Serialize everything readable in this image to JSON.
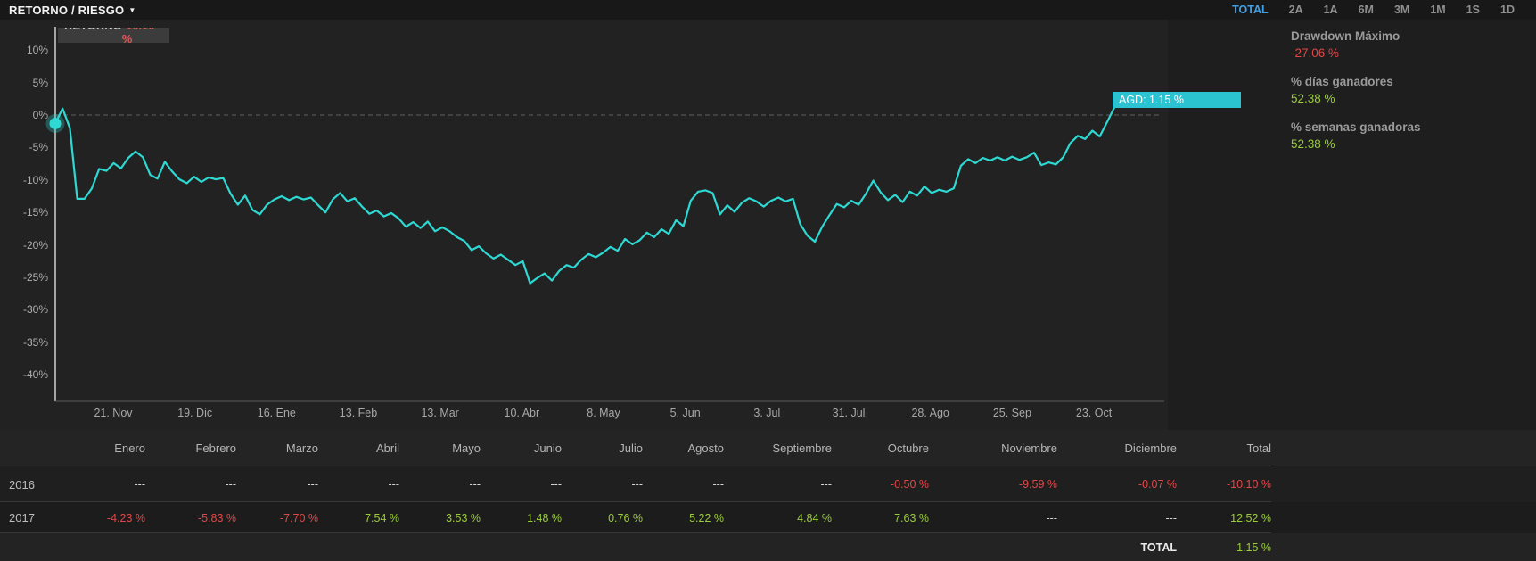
{
  "header": {
    "title": "RETORNO / RIESGO",
    "caret": "▼"
  },
  "periods": {
    "items": [
      {
        "label": "TOTAL",
        "active": true
      },
      {
        "label": "2A",
        "active": false
      },
      {
        "label": "1A",
        "active": false
      },
      {
        "label": "6M",
        "active": false
      },
      {
        "label": "3M",
        "active": false
      },
      {
        "label": "1M",
        "active": false
      },
      {
        "label": "1S",
        "active": false
      },
      {
        "label": "1D",
        "active": false
      }
    ]
  },
  "tooltip": {
    "label": "RETORNO",
    "value": "-10.10 %"
  },
  "stats": {
    "items": [
      {
        "label": "Drawdown Máximo",
        "value": "-27.06 %",
        "color": "#e04747"
      },
      {
        "label": "% días ganadores",
        "value": "52.38 %",
        "color": "#9acc3c"
      },
      {
        "label": "% semanas ganadoras",
        "value": "52.38 %",
        "color": "#9acc3c"
      }
    ]
  },
  "chart_data": {
    "type": "line",
    "unit": "%",
    "series_name": "Retorno",
    "end_label": "AGD: 1.15 %",
    "line_color": "#2ed9d3",
    "zero_line_dashed": true,
    "ylim": [
      -43,
      13
    ],
    "y_ticks": [
      "10%",
      "5%",
      "0%",
      "-5%",
      "-10%",
      "-15%",
      "-20%",
      "-25%",
      "-30%",
      "-35%",
      "-40%"
    ],
    "y_tick_values": [
      10,
      5,
      0,
      -5,
      -10,
      -15,
      -20,
      -25,
      -30,
      -35,
      -40
    ],
    "x_ticks": [
      "21. Nov",
      "19. Dic",
      "16. Ene",
      "13. Feb",
      "13. Mar",
      "10. Abr",
      "8. May",
      "5. Jun",
      "3. Jul",
      "31. Jul",
      "28. Ago",
      "25. Sep",
      "23. Oct"
    ],
    "values": [
      -1.3,
      1.0,
      -2.0,
      -12.9,
      -12.9,
      -11.3,
      -8.3,
      -8.6,
      -7.4,
      -8.2,
      -6.6,
      -5.6,
      -6.5,
      -9.2,
      -9.8,
      -7.2,
      -8.7,
      -9.9,
      -10.5,
      -9.5,
      -10.3,
      -9.6,
      -9.9,
      -9.7,
      -12.1,
      -13.8,
      -12.4,
      -14.6,
      -15.3,
      -13.8,
      -13.0,
      -12.5,
      -13.1,
      -12.6,
      -13.0,
      -12.7,
      -13.9,
      -15.0,
      -13.0,
      -12.0,
      -13.3,
      -12.8,
      -14.1,
      -15.2,
      -14.7,
      -15.6,
      -15.1,
      -15.9,
      -17.2,
      -16.5,
      -17.4,
      -16.4,
      -17.9,
      -17.3,
      -17.9,
      -18.8,
      -19.4,
      -20.8,
      -20.2,
      -21.3,
      -22.1,
      -21.5,
      -22.3,
      -23.1,
      -22.5,
      -25.9,
      -25.1,
      -24.4,
      -25.5,
      -24.0,
      -23.1,
      -23.5,
      -22.3,
      -21.4,
      -21.9,
      -21.2,
      -20.3,
      -20.9,
      -19.1,
      -19.9,
      -19.3,
      -18.1,
      -18.8,
      -17.6,
      -18.3,
      -16.2,
      -17.1,
      -13.2,
      -11.8,
      -11.6,
      -12.0,
      -15.3,
      -13.9,
      -14.9,
      -13.5,
      -12.8,
      -13.3,
      -14.1,
      -13.2,
      -12.7,
      -13.3,
      -12.9,
      -16.8,
      -18.6,
      -19.5,
      -17.2,
      -15.4,
      -13.7,
      -14.2,
      -13.2,
      -13.8,
      -12.1,
      -10.1,
      -11.9,
      -13.1,
      -12.3,
      -13.4,
      -11.8,
      -12.4,
      -11.0,
      -12.0,
      -11.5,
      -11.8,
      -11.3,
      -7.8,
      -6.8,
      -7.4,
      -6.6,
      -7.0,
      -6.5,
      -7.0,
      -6.4,
      -6.9,
      -6.5,
      -5.8,
      -7.7,
      -7.3,
      -7.6,
      -6.5,
      -4.3,
      -3.2,
      -3.7,
      -2.4,
      -3.3,
      -1.1,
      1.15
    ]
  },
  "table": {
    "months": [
      "Enero",
      "Febrero",
      "Marzo",
      "Abril",
      "Mayo",
      "Junio",
      "Julio",
      "Agosto",
      "Septiembre",
      "Octubre",
      "Noviembre",
      "Diciembre",
      "Total"
    ],
    "color_map": {
      "red": "#e04747",
      "green": "#9acc3c",
      "dash": "#d6d6d6"
    },
    "rows": [
      {
        "year": "2016",
        "cells": [
          {
            "t": "---",
            "c": "dash"
          },
          {
            "t": "---",
            "c": "dash"
          },
          {
            "t": "---",
            "c": "dash"
          },
          {
            "t": "---",
            "c": "dash"
          },
          {
            "t": "---",
            "c": "dash"
          },
          {
            "t": "---",
            "c": "dash"
          },
          {
            "t": "---",
            "c": "dash"
          },
          {
            "t": "---",
            "c": "dash"
          },
          {
            "t": "---",
            "c": "dash"
          },
          {
            "t": "-0.50 %",
            "c": "red"
          },
          {
            "t": "-9.59 %",
            "c": "red"
          },
          {
            "t": "-0.07 %",
            "c": "red"
          },
          {
            "t": "-10.10 %",
            "c": "red"
          }
        ]
      },
      {
        "year": "2017",
        "cells": [
          {
            "t": "-4.23 %",
            "c": "red"
          },
          {
            "t": "-5.83 %",
            "c": "red"
          },
          {
            "t": "-7.70 %",
            "c": "red"
          },
          {
            "t": "7.54 %",
            "c": "green"
          },
          {
            "t": "3.53 %",
            "c": "green"
          },
          {
            "t": "1.48 %",
            "c": "green"
          },
          {
            "t": "0.76 %",
            "c": "green"
          },
          {
            "t": "5.22 %",
            "c": "green"
          },
          {
            "t": "4.84 %",
            "c": "green"
          },
          {
            "t": "7.63 %",
            "c": "green"
          },
          {
            "t": "---",
            "c": "dash"
          },
          {
            "t": "---",
            "c": "dash"
          },
          {
            "t": "12.52 %",
            "c": "green"
          }
        ]
      }
    ],
    "total_label": "TOTAL",
    "total_value": "1.15 %",
    "total_value_color": "#9acc3c"
  }
}
